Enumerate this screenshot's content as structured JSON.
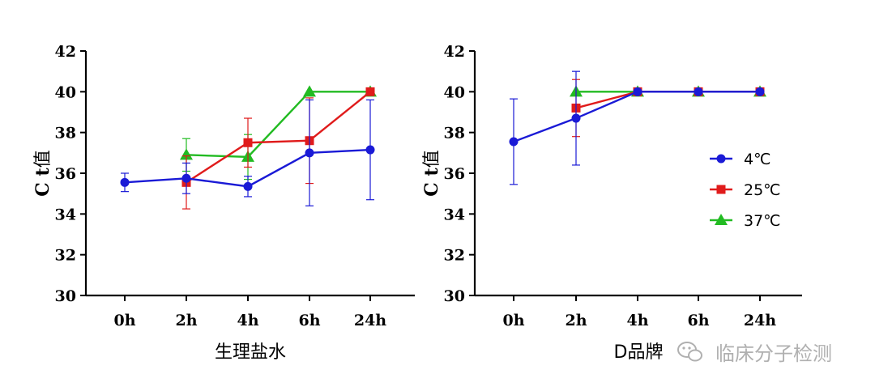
{
  "chart_data": [
    {
      "type": "line",
      "xlabel": "生理盐水",
      "ylabel_main": "C t",
      "ylabel_suffix": "值",
      "categories": [
        "0h",
        "2h",
        "4h",
        "6h",
        "24h"
      ],
      "ylim": [
        30,
        42
      ],
      "yticks": [
        30,
        32,
        34,
        36,
        38,
        40,
        42
      ],
      "series": [
        {
          "name": "4℃",
          "color": "#1a1ad6",
          "marker": "circle",
          "values": [
            35.55,
            35.75,
            35.35,
            37.0,
            37.15
          ],
          "errors": [
            0.45,
            0.75,
            0.5,
            2.6,
            2.45
          ]
        },
        {
          "name": "25℃",
          "color": "#e01b1b",
          "marker": "square",
          "values": [
            null,
            35.55,
            37.5,
            37.6,
            40.0
          ],
          "errors": [
            null,
            1.3,
            1.2,
            2.1,
            0
          ]
        },
        {
          "name": "37℃",
          "color": "#22bb22",
          "marker": "triangle",
          "values": [
            null,
            36.9,
            36.8,
            40.0,
            40.0
          ],
          "errors": [
            null,
            0.8,
            1.1,
            0,
            0
          ]
        }
      ]
    },
    {
      "type": "line",
      "xlabel": "D品牌",
      "ylabel_main": "C t",
      "ylabel_suffix": "值",
      "categories": [
        "0h",
        "2h",
        "4h",
        "6h",
        "24h"
      ],
      "ylim": [
        30,
        42
      ],
      "yticks": [
        30,
        32,
        34,
        36,
        38,
        40,
        42
      ],
      "series": [
        {
          "name": "4℃",
          "color": "#1a1ad6",
          "marker": "circle",
          "values": [
            37.55,
            38.7,
            40.0,
            40.0,
            40.0
          ],
          "errors": [
            2.1,
            2.3,
            0,
            0,
            0
          ]
        },
        {
          "name": "25℃",
          "color": "#e01b1b",
          "marker": "square",
          "values": [
            null,
            39.2,
            40.0,
            40.0,
            40.0
          ],
          "errors": [
            null,
            1.4,
            0,
            0,
            0
          ]
        },
        {
          "name": "37℃",
          "color": "#22bb22",
          "marker": "triangle",
          "values": [
            null,
            40.0,
            40.0,
            40.0,
            40.0
          ],
          "errors": [
            null,
            0,
            0,
            0,
            0
          ]
        }
      ]
    }
  ],
  "legend": {
    "items": [
      {
        "label": "4℃",
        "color": "#1a1ad6",
        "marker": "circle"
      },
      {
        "label": "25℃",
        "color": "#e01b1b",
        "marker": "square"
      },
      {
        "label": "37℃",
        "color": "#22bb22",
        "marker": "triangle"
      }
    ]
  },
  "watermark": {
    "text": "临床分子检测",
    "icon": "wechat-icon"
  }
}
